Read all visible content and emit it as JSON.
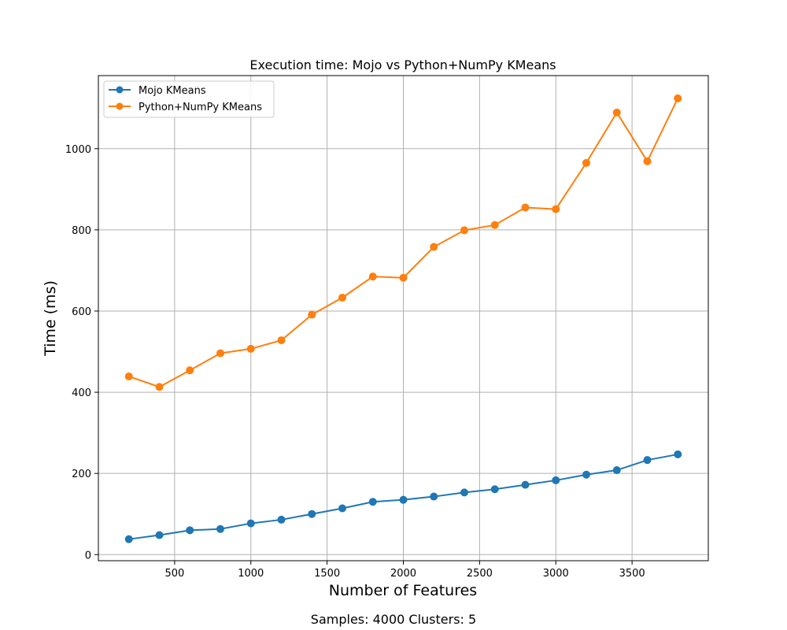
{
  "chart_data": {
    "type": "line",
    "title": "Execution time: Mojo vs Python+NumPy KMeans",
    "xlabel": "Number of Features",
    "ylabel": "Time (ms)",
    "caption": "Samples: 4000 Clusters: 5",
    "xlim": [
      0,
      4000
    ],
    "ylim": [
      -15,
      1180
    ],
    "x_ticks": [
      500,
      1000,
      1500,
      2000,
      2500,
      3000,
      3500
    ],
    "y_ticks": [
      0,
      200,
      400,
      600,
      800,
      1000
    ],
    "grid": true,
    "legend_position": "top-left",
    "x": [
      200,
      400,
      600,
      800,
      1000,
      1200,
      1400,
      1600,
      1800,
      2000,
      2200,
      2400,
      2600,
      2800,
      3000,
      3200,
      3400,
      3600,
      3800
    ],
    "series": [
      {
        "name": "Mojo KMeans",
        "color": "#1f77b4",
        "marker": "circle",
        "values": [
          38,
          48,
          60,
          63,
          77,
          86,
          100,
          114,
          130,
          135,
          143,
          153,
          161,
          172,
          183,
          197,
          208,
          233,
          247
        ]
      },
      {
        "name": "Python+NumPy KMeans",
        "color": "#ff7f0e",
        "marker": "circle",
        "values": [
          439,
          413,
          454,
          496,
          507,
          528,
          591,
          633,
          685,
          682,
          758,
          799,
          812,
          855,
          851,
          965,
          1089,
          969,
          1124
        ]
      }
    ]
  }
}
